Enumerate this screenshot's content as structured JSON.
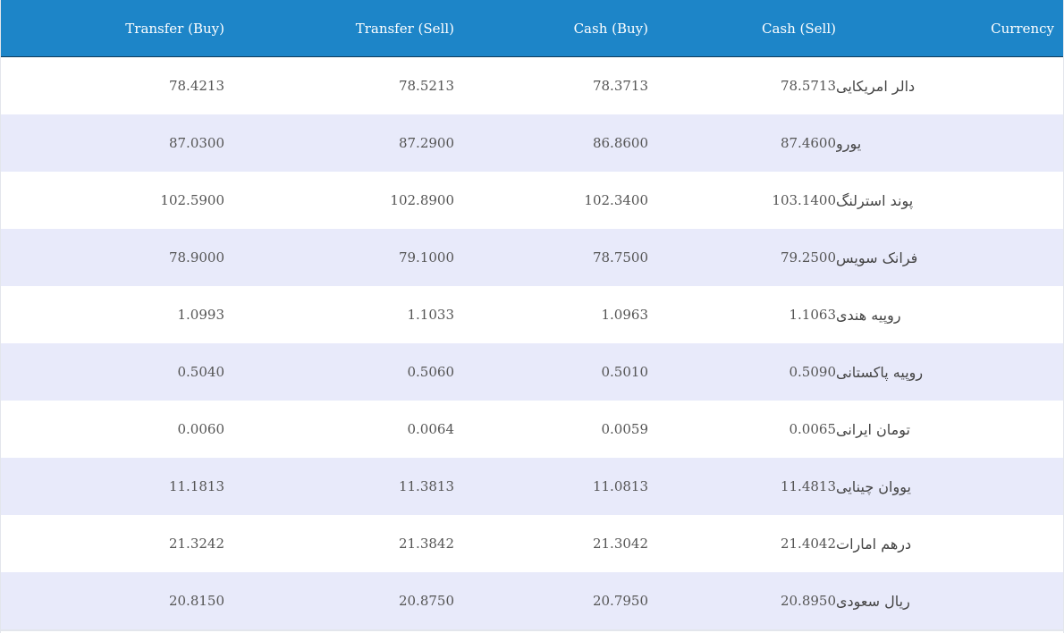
{
  "table": {
    "headers": [
      "Transfer (Buy)",
      "Transfer (Sell)",
      "Cash (Buy)",
      "Cash (Sell)",
      "Currency"
    ],
    "rows": [
      {
        "transfer_buy": "78.4213",
        "transfer_sell": "78.5213",
        "cash_buy": "78.3713",
        "cash_sell": "78.5713",
        "currency": "دالر امریکایی"
      },
      {
        "transfer_buy": "87.0300",
        "transfer_sell": "87.2900",
        "cash_buy": "86.8600",
        "cash_sell": "87.4600",
        "currency": "یورو"
      },
      {
        "transfer_buy": "102.5900",
        "transfer_sell": "102.8900",
        "cash_buy": "102.3400",
        "cash_sell": "103.1400",
        "currency": "پوند استرلنگ"
      },
      {
        "transfer_buy": "78.9000",
        "transfer_sell": "79.1000",
        "cash_buy": "78.7500",
        "cash_sell": "79.2500",
        "currency": "فرانک سویس"
      },
      {
        "transfer_buy": "1.0993",
        "transfer_sell": "1.1033",
        "cash_buy": "1.0963",
        "cash_sell": "1.1063",
        "currency": "روپیه هندی"
      },
      {
        "transfer_buy": "0.5040",
        "transfer_sell": "0.5060",
        "cash_buy": "0.5010",
        "cash_sell": "0.5090",
        "currency": "روپیه پاکستانی"
      },
      {
        "transfer_buy": "0.0060",
        "transfer_sell": "0.0064",
        "cash_buy": "0.0059",
        "cash_sell": "0.0065",
        "currency": "تومان ایرانی"
      },
      {
        "transfer_buy": "11.1813",
        "transfer_sell": "11.3813",
        "cash_buy": "11.0813",
        "cash_sell": "11.4813",
        "currency": "یووان چینایی"
      },
      {
        "transfer_buy": "21.3242",
        "transfer_sell": "21.3842",
        "cash_buy": "21.3042",
        "cash_sell": "21.4042",
        "currency": "درهم امارات"
      },
      {
        "transfer_buy": "20.8150",
        "transfer_sell": "20.8750",
        "cash_buy": "20.7950",
        "cash_sell": "20.8950",
        "currency": "ریال سعودی"
      }
    ]
  },
  "colors": {
    "header_bg": "#1d85c8",
    "row_alt_bg": "#e8eafa"
  }
}
